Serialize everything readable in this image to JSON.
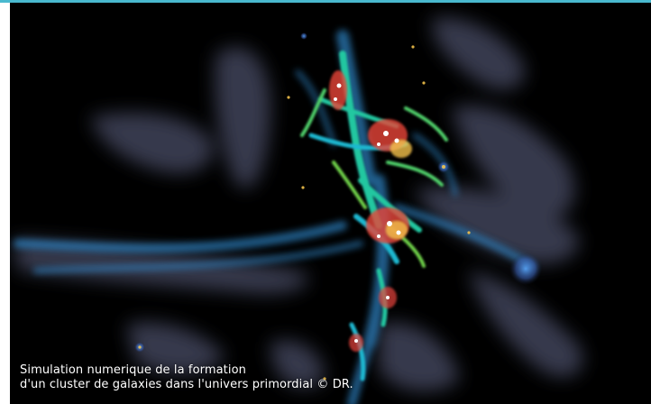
{
  "image": {
    "caption_line_1": "Simulation numerique de la formation",
    "caption_line_2": "d'un cluster de galaxies dans l'univers primordial © DR.",
    "colors": {
      "background": "#000000",
      "gas": "#4a4e66",
      "filament": "#2f86c8",
      "dense": "#23c7a0",
      "hot": "#e8453a",
      "core": "#ffffff",
      "accent_line": "#49b9cf"
    }
  }
}
